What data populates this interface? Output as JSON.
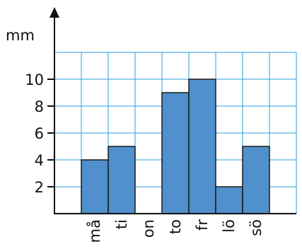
{
  "chart_data": {
    "type": "bar",
    "ylabel": "mm",
    "xlabel": "",
    "title": "",
    "categories": [
      "må",
      "ti",
      "on",
      "to",
      "fr",
      "lö",
      "sö"
    ],
    "values": [
      4,
      5,
      0,
      9,
      10,
      2,
      5
    ],
    "ylim": [
      0,
      12
    ],
    "yticks": [
      "2",
      "4",
      "6",
      "8",
      "10"
    ],
    "grid": true,
    "bar_color": "#5090cc",
    "grid_color": "#2e9fe0"
  }
}
